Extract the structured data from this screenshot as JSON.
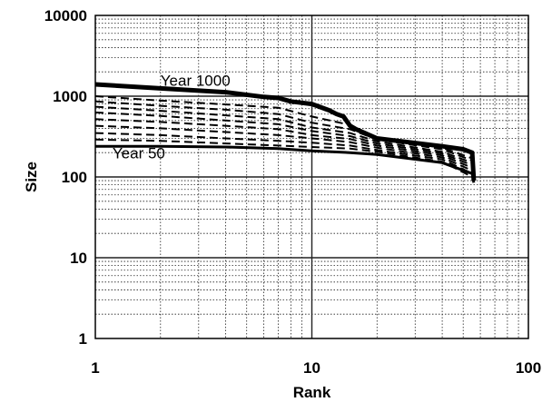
{
  "chart_data": {
    "type": "line",
    "xlabel": "Rank",
    "ylabel": "Size",
    "x_scale": "log",
    "y_scale": "log",
    "xlim": [
      1,
      100
    ],
    "ylim": [
      1,
      10000
    ],
    "grid": true,
    "x_ticks": [
      "1",
      "10",
      "100"
    ],
    "y_ticks": [
      "1",
      "10",
      "100",
      "1000",
      "10000"
    ],
    "annotations": [
      {
        "text": "Year 1000",
        "x": 2,
        "y": 1350
      },
      {
        "text": "Year 50",
        "x": 1.2,
        "y": 170
      }
    ],
    "series": [
      {
        "style": "solid-heavy",
        "points": [
          [
            1,
            1400
          ],
          [
            2,
            1250
          ],
          [
            4,
            1120
          ],
          [
            6,
            980
          ],
          [
            7,
            950
          ],
          [
            8,
            860
          ],
          [
            10,
            800
          ],
          [
            12,
            670
          ],
          [
            13,
            600
          ],
          [
            14,
            560
          ],
          [
            15,
            430
          ],
          [
            16,
            390
          ],
          [
            20,
            300
          ],
          [
            40,
            240
          ],
          [
            50,
            220
          ],
          [
            55,
            200
          ],
          [
            56,
            90
          ]
        ]
      },
      {
        "style": "dashed",
        "points": [
          [
            1,
            1000
          ],
          [
            2,
            880
          ],
          [
            4,
            790
          ],
          [
            7,
            720
          ],
          [
            10,
            560
          ],
          [
            15,
            440
          ],
          [
            20,
            310
          ],
          [
            40,
            230
          ],
          [
            55,
            170
          ]
        ]
      },
      {
        "style": "dashed",
        "points": [
          [
            1,
            860
          ],
          [
            2,
            760
          ],
          [
            4,
            680
          ],
          [
            7,
            600
          ],
          [
            10,
            470
          ],
          [
            15,
            390
          ],
          [
            20,
            290
          ],
          [
            40,
            220
          ],
          [
            55,
            160
          ]
        ]
      },
      {
        "style": "dashed",
        "points": [
          [
            1,
            740
          ],
          [
            2,
            660
          ],
          [
            4,
            580
          ],
          [
            7,
            520
          ],
          [
            10,
            410
          ],
          [
            15,
            350
          ],
          [
            20,
            275
          ],
          [
            40,
            205
          ],
          [
            55,
            150
          ]
        ]
      },
      {
        "style": "dashed",
        "points": [
          [
            1,
            630
          ],
          [
            2,
            570
          ],
          [
            4,
            500
          ],
          [
            7,
            450
          ],
          [
            10,
            370
          ],
          [
            15,
            320
          ],
          [
            20,
            260
          ],
          [
            40,
            195
          ],
          [
            55,
            140
          ]
        ]
      },
      {
        "style": "dashed",
        "points": [
          [
            1,
            520
          ],
          [
            2,
            480
          ],
          [
            4,
            430
          ],
          [
            7,
            390
          ],
          [
            10,
            330
          ],
          [
            15,
            295
          ],
          [
            20,
            245
          ],
          [
            40,
            185
          ],
          [
            55,
            130
          ]
        ]
      },
      {
        "style": "dashed",
        "points": [
          [
            1,
            430
          ],
          [
            2,
            400
          ],
          [
            4,
            360
          ],
          [
            7,
            330
          ],
          [
            10,
            300
          ],
          [
            15,
            270
          ],
          [
            20,
            230
          ],
          [
            40,
            175
          ],
          [
            55,
            120
          ]
        ]
      },
      {
        "style": "dashed",
        "points": [
          [
            1,
            350
          ],
          [
            2,
            330
          ],
          [
            4,
            300
          ],
          [
            7,
            280
          ],
          [
            10,
            265
          ],
          [
            15,
            245
          ],
          [
            20,
            215
          ],
          [
            40,
            165
          ],
          [
            55,
            110
          ]
        ]
      },
      {
        "style": "dashed",
        "points": [
          [
            1,
            290
          ],
          [
            2,
            280
          ],
          [
            4,
            260
          ],
          [
            7,
            245
          ],
          [
            10,
            235
          ],
          [
            15,
            225
          ],
          [
            20,
            205
          ],
          [
            40,
            155
          ],
          [
            55,
            100
          ]
        ]
      },
      {
        "style": "solid",
        "points": [
          [
            1,
            240
          ],
          [
            2,
            240
          ],
          [
            4,
            235
          ],
          [
            7,
            225
          ],
          [
            10,
            210
          ],
          [
            15,
            200
          ],
          [
            20,
            190
          ],
          [
            40,
            150
          ],
          [
            55,
            110
          ],
          [
            56,
            85
          ]
        ]
      }
    ]
  }
}
